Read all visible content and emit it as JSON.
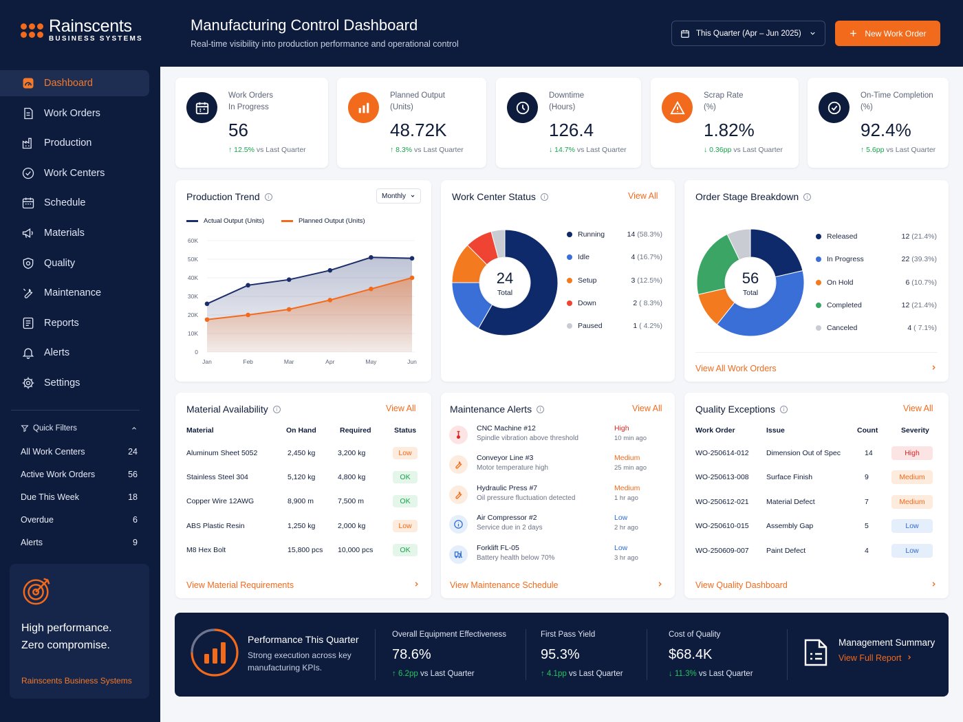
{
  "brand": {
    "name": "Rainscents",
    "sub": "BUSINESS SYSTEMS"
  },
  "nav": [
    {
      "label": "Dashboard",
      "icon": "dashboard-icon"
    },
    {
      "label": "Work Orders",
      "icon": "work-orders-icon"
    },
    {
      "label": "Production",
      "icon": "factory-icon"
    },
    {
      "label": "Work Centers",
      "icon": "work-centers-icon"
    },
    {
      "label": "Schedule",
      "icon": "calendar-icon"
    },
    {
      "label": "Materials",
      "icon": "megaphone-icon"
    },
    {
      "label": "Quality",
      "icon": "shield-icon"
    },
    {
      "label": "Maintenance",
      "icon": "wrench-icon"
    },
    {
      "label": "Reports",
      "icon": "reports-icon"
    },
    {
      "label": "Alerts",
      "icon": "bell-icon"
    },
    {
      "label": "Settings",
      "icon": "gear-icon"
    }
  ],
  "quick_filters": {
    "title": "Quick Filters",
    "items": [
      {
        "label": "All Work Centers",
        "count": "24"
      },
      {
        "label": "Active Work Orders",
        "count": "56"
      },
      {
        "label": "Due This Week",
        "count": "18"
      },
      {
        "label": "Overdue",
        "count": "6"
      },
      {
        "label": "Alerts",
        "count": "9"
      }
    ]
  },
  "promo": {
    "line1": "High performance.",
    "line2": "Zero compromise.",
    "brand": "Rainscents Business Systems"
  },
  "header": {
    "title": "Manufacturing Control Dashboard",
    "subtitle": "Real-time visibility into production performance and operational control",
    "date_range": "This Quarter (Apr – Jun 2025)",
    "new_button": "New Work Order"
  },
  "kpis": [
    {
      "label1": "Work Orders",
      "label2": "In Progress",
      "value": "56",
      "delta": "12.5%",
      "dir": "up",
      "suffix": "vs Last Quarter",
      "icon": "calendar-icon"
    },
    {
      "label1": "Planned Output",
      "label2": "(Units)",
      "value": "48.72K",
      "delta": "8.3%",
      "dir": "up",
      "suffix": "vs Last Quarter",
      "icon": "bar-chart-icon"
    },
    {
      "label1": "Downtime",
      "label2": "(Hours)",
      "value": "126.4",
      "delta": "14.7%",
      "dir": "down",
      "suffix": "vs Last Quarter",
      "icon": "clock-icon"
    },
    {
      "label1": "Scrap Rate",
      "label2": "(%)",
      "value": "1.82%",
      "delta": "0.36pp",
      "dir": "down",
      "suffix": "vs Last Quarter",
      "icon": "warning-icon"
    },
    {
      "label1": "On-Time Completion",
      "label2": "(%)",
      "value": "92.4%",
      "delta": "5.6pp",
      "dir": "up",
      "suffix": "vs Last Quarter",
      "icon": "check-circle-icon"
    }
  ],
  "trend": {
    "title": "Production Trend",
    "period": "Monthly",
    "legend_actual": "Actual Output (Units)",
    "legend_planned": "Planned Output (Units)"
  },
  "work_center": {
    "title": "Work Center Status",
    "view_all": "View All",
    "total": "24",
    "total_label": "Total"
  },
  "order_stage": {
    "title": "Order Stage Breakdown",
    "total": "56",
    "total_label": "Total",
    "link": "View All Work Orders"
  },
  "chart_data": [
    {
      "type": "area",
      "title": "Production Trend",
      "categories": [
        "Jan",
        "Feb",
        "Mar",
        "Apr",
        "May",
        "Jun"
      ],
      "series": [
        {
          "name": "Actual Output (Units)",
          "values": [
            26000,
            36000,
            39000,
            44000,
            51000,
            50500
          ],
          "color": "#1b2d6b"
        },
        {
          "name": "Planned Output (Units)",
          "values": [
            17500,
            20000,
            23000,
            28000,
            34000,
            40000
          ],
          "color": "#f26a1b"
        }
      ],
      "yticks": [
        "0",
        "10K",
        "20K",
        "30K",
        "40K",
        "50K",
        "60K"
      ],
      "ylim": [
        0,
        60000
      ],
      "grid": true,
      "legend": "top-left"
    },
    {
      "type": "pie",
      "title": "Work Center Status",
      "slices": [
        {
          "label": "Running",
          "value": 14,
          "pct": "(58.3%)",
          "color": "#0f2a6b"
        },
        {
          "label": "Idle",
          "value": 4,
          "pct": "(16.7%)",
          "color": "#3a6fd8"
        },
        {
          "label": "Setup",
          "value": 3,
          "pct": "(12.5%)",
          "color": "#f47a1f"
        },
        {
          "label": "Down",
          "value": 2,
          "pct": "( 8.3%)",
          "color": "#ef4433"
        },
        {
          "label": "Paused",
          "value": 1,
          "pct": "( 4.2%)",
          "color": "#c9ccd3"
        }
      ]
    },
    {
      "type": "pie",
      "title": "Order Stage Breakdown",
      "slices": [
        {
          "label": "Released",
          "value": 12,
          "pct": "(21.4%)",
          "color": "#0f2a6b"
        },
        {
          "label": "In Progress",
          "value": 22,
          "pct": "(39.3%)",
          "color": "#3a6fd8"
        },
        {
          "label": "On Hold",
          "value": 6,
          "pct": "(10.7%)",
          "color": "#f47a1f"
        },
        {
          "label": "Completed",
          "value": 12,
          "pct": "(21.4%)",
          "color": "#3aa564"
        },
        {
          "label": "Canceled",
          "value": 4,
          "pct": "( 7.1%)",
          "color": "#c9ccd3"
        }
      ]
    }
  ],
  "materials": {
    "title": "Material Availability",
    "view_all": "View All",
    "headers": [
      "Material",
      "On Hand",
      "Required",
      "Status"
    ],
    "rows": [
      {
        "name": "Aluminum Sheet 5052",
        "on_hand": "2,450 kg",
        "required": "3,200 kg",
        "status": "Low"
      },
      {
        "name": "Stainless Steel 304",
        "on_hand": "5,120 kg",
        "required": "4,800 kg",
        "status": "OK"
      },
      {
        "name": "Copper Wire 12AWG",
        "on_hand": "8,900 m",
        "required": "7,500 m",
        "status": "OK"
      },
      {
        "name": "ABS Plastic Resin",
        "on_hand": "1,250 kg",
        "required": "2,000 kg",
        "status": "Low"
      },
      {
        "name": "M8 Hex Bolt",
        "on_hand": "15,800 pcs",
        "required": "10,000 pcs",
        "status": "OK"
      }
    ],
    "link": "View Material Requirements"
  },
  "maintenance": {
    "title": "Maintenance Alerts",
    "view_all": "View All",
    "items": [
      {
        "title": "CNC Machine #12",
        "sub": "Spindle vibration above threshold",
        "priority": "High",
        "time": "10 min ago",
        "icon": "thermometer-icon"
      },
      {
        "title": "Conveyor Line #3",
        "sub": "Motor temperature high",
        "priority": "Medium",
        "time": "25 min ago",
        "icon": "wrench-icon"
      },
      {
        "title": "Hydraulic Press #7",
        "sub": "Oil pressure fluctuation detected",
        "priority": "Medium",
        "time": "1 hr ago",
        "icon": "wrench-icon"
      },
      {
        "title": "Air Compressor #2",
        "sub": "Service due in 2 days",
        "priority": "Low",
        "time": "2 hr ago",
        "icon": "info-icon"
      },
      {
        "title": "Forklift FL-05",
        "sub": "Battery health below 70%",
        "priority": "Low",
        "time": "3 hr ago",
        "icon": "forklift-icon"
      }
    ],
    "link": "View Maintenance Schedule"
  },
  "quality": {
    "title": "Quality Exceptions",
    "view_all": "View All",
    "headers": [
      "Work Order",
      "Issue",
      "Count",
      "Severity"
    ],
    "rows": [
      {
        "wo": "WO-250614-012",
        "issue": "Dimension Out of Spec",
        "count": "14",
        "severity": "High"
      },
      {
        "wo": "WO-250613-008",
        "issue": "Surface Finish",
        "count": "9",
        "severity": "Medium"
      },
      {
        "wo": "WO-250612-021",
        "issue": "Material Defect",
        "count": "7",
        "severity": "Medium"
      },
      {
        "wo": "WO-250610-015",
        "issue": "Assembly Gap",
        "count": "5",
        "severity": "Low"
      },
      {
        "wo": "WO-250609-007",
        "issue": "Paint Defect",
        "count": "4",
        "severity": "Low"
      }
    ],
    "link": "View Quality Dashboard"
  },
  "performance": {
    "title": "Performance This Quarter",
    "subtitle": "Strong execution across key manufacturing KPIs.",
    "metrics": [
      {
        "label": "Overall Equipment Effectiveness",
        "value": "78.6%",
        "delta": "6.2pp",
        "dir": "up",
        "suffix": "vs Last Quarter"
      },
      {
        "label": "First Pass Yield",
        "value": "95.3%",
        "delta": "4.1pp",
        "dir": "up",
        "suffix": "vs Last Quarter"
      },
      {
        "label": "Cost of Quality",
        "value": "$68.4K",
        "delta": "11.3%",
        "dir": "down",
        "suffix": "vs Last Quarter"
      }
    ],
    "summary_title": "Management Summary",
    "summary_link": "View Full Report"
  }
}
